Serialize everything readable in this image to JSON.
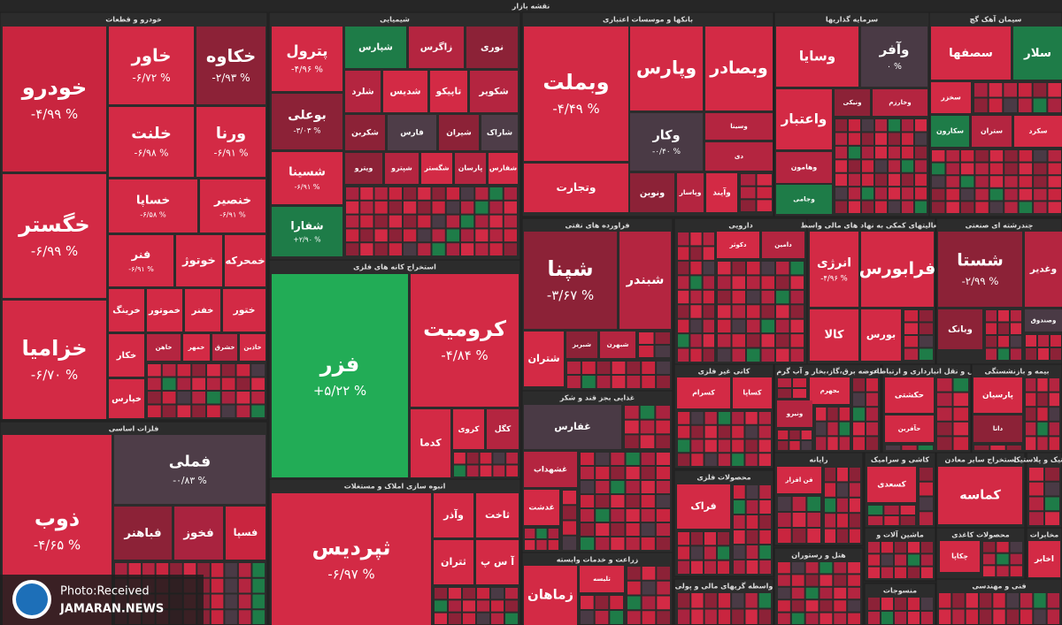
{
  "header": {
    "title": "نقشه بازار"
  },
  "sectors": [
    {
      "title": "خودرو و قطعات",
      "tiles": [
        {
          "label": "خودرو",
          "change": "-۴/۹۹ %",
          "color": "#c9253f"
        },
        {
          "label": "خگستر",
          "change": "-۶/۹۹ %",
          "color": "#d32a45"
        },
        {
          "label": "خزامیا",
          "change": "-۶/۷۰ %",
          "color": "#d32a45"
        },
        {
          "label": "خاور",
          "change": "-۶/۷۲ %",
          "color": "#d32a45"
        },
        {
          "label": "خکاوه",
          "change": "-۲/۹۳ %",
          "color": "#8c2237"
        },
        {
          "label": "خلنت",
          "change": "-۶/۹۸ %",
          "color": "#d32a45"
        },
        {
          "label": "ورنا",
          "change": "-۶/۹۱ %",
          "color": "#d32a45"
        },
        {
          "label": "خساپا",
          "change": "-۶/۵۸ %",
          "color": "#d32a45"
        },
        {
          "label": "خنصیر",
          "change": "-۶/۹۱ %",
          "color": "#d32a45"
        },
        {
          "label": "فنر",
          "change": "-۶/۹۱ %",
          "color": "#d32a45"
        },
        {
          "label": "خوتوژ",
          "color": "#d32a45"
        },
        {
          "label": "خمحرکه",
          "color": "#d32a45"
        },
        {
          "label": "خرینگ",
          "color": "#d32a45"
        },
        {
          "label": "خموتور",
          "color": "#d32a45"
        },
        {
          "label": "خفنر",
          "color": "#d32a45"
        },
        {
          "label": "ختور",
          "color": "#d32a45"
        },
        {
          "label": "خکار",
          "color": "#d32a45"
        },
        {
          "label": "خاهن",
          "color": "#b42540"
        },
        {
          "label": "خمهر",
          "color": "#d32a45"
        },
        {
          "label": "خشرق",
          "color": "#b42540"
        },
        {
          "label": "خاذین",
          "color": "#d32a45"
        },
        {
          "label": "خپارس",
          "color": "#d32a45"
        }
      ]
    },
    {
      "title": "فلزات اساسی",
      "tiles": [
        {
          "label": "ذوب",
          "change": "-۴/۶۵ %",
          "color": "#d32a45"
        },
        {
          "label": "فملی",
          "change": "-۰/۸۳ %",
          "color": "#4e3d48"
        },
        {
          "label": "فباهنر",
          "color": "#8c2237"
        },
        {
          "label": "فخوز",
          "color": "#a9233f"
        },
        {
          "label": "فسپا",
          "color": "#c9253f"
        }
      ]
    },
    {
      "title": "شیمیایی",
      "tiles": [
        {
          "label": "پترول",
          "change": "-۴/۹۶ %",
          "color": "#d32a45"
        },
        {
          "label": "بوعلی",
          "change": "-۳/۰۳ %",
          "color": "#8c2237"
        },
        {
          "label": "شسینا",
          "change": "-۶/۹۱ %",
          "color": "#d32a45"
        },
        {
          "label": "شفارا",
          "change": "+۲/۹۰ %",
          "color": "#1e7c48"
        },
        {
          "label": "شپارس",
          "color": "#1e7c48"
        },
        {
          "label": "زاگرس",
          "color": "#b42540"
        },
        {
          "label": "نوری",
          "color": "#8c2237"
        },
        {
          "label": "شلرد",
          "color": "#b42540"
        },
        {
          "label": "شدیس",
          "color": "#d32a45"
        },
        {
          "label": "تاپیکو",
          "color": "#d32a45"
        },
        {
          "label": "شکویر",
          "color": "#b42540"
        },
        {
          "label": "شکربن",
          "color": "#8c2237"
        },
        {
          "label": "فارس",
          "color": "#4e3d48"
        },
        {
          "label": "شیران",
          "color": "#8c2237"
        },
        {
          "label": "شاراک",
          "color": "#4e3d48"
        },
        {
          "label": "ویترو",
          "color": "#8c2237"
        },
        {
          "label": "شپترو",
          "color": "#b42540"
        },
        {
          "label": "شگستر",
          "color": "#d32a45"
        },
        {
          "label": "پارسان",
          "color": "#b42540"
        },
        {
          "label": "شفارس",
          "color": "#d32a45"
        }
      ]
    },
    {
      "title": "استخراج کانه های فلزی",
      "tiles": [
        {
          "label": "فزر",
          "change": "+۵/۲۲ %",
          "color": "#22ac56"
        },
        {
          "label": "کرومیت",
          "change": "-۴/۸۴ %",
          "color": "#d32a45"
        },
        {
          "label": "کدما",
          "color": "#d32a45"
        },
        {
          "label": "کروی",
          "color": "#d32a45"
        },
        {
          "label": "کگل",
          "color": "#b42540"
        }
      ]
    },
    {
      "title": "انبوه سازی املاک و مستغلات",
      "tiles": [
        {
          "label": "ثپردیس",
          "change": "-۶/۹۷ %",
          "color": "#d32a45"
        },
        {
          "label": "وآذر",
          "color": "#d32a45"
        },
        {
          "label": "ثاخت",
          "color": "#d32a45"
        },
        {
          "label": "ثتران",
          "color": "#d32a45"
        },
        {
          "label": "آ س پ",
          "color": "#d32a45"
        }
      ]
    },
    {
      "title": "بانکها و موسسات اعتباری",
      "tiles": [
        {
          "label": "وبملت",
          "change": "-۴/۴۹ %",
          "color": "#d32a45"
        },
        {
          "label": "وپارس",
          "color": "#d32a45"
        },
        {
          "label": "وبصادر",
          "color": "#d32a45"
        },
        {
          "label": "وکار",
          "change": "-۰/۴۰ %",
          "color": "#4a3a45"
        },
        {
          "label": "وسینا",
          "color": "#b42540"
        },
        {
          "label": "دی",
          "color": "#b42540"
        },
        {
          "label": "وتجارت",
          "color": "#d32a45"
        },
        {
          "label": "ونوین",
          "color": "#8c2237"
        },
        {
          "label": "وپاسار",
          "color": "#b42540"
        },
        {
          "label": "وآیند",
          "color": "#d32a45"
        }
      ]
    },
    {
      "title": "سرمایه گذاریها",
      "tiles": [
        {
          "label": "وسایا",
          "color": "#d32a45"
        },
        {
          "label": "وآفر",
          "change": "۰ %",
          "color": "#4a3a45"
        },
        {
          "label": "واعتبار",
          "color": "#d32a45"
        },
        {
          "label": "ونیکی",
          "color": "#8c2237"
        },
        {
          "label": "وخارزم",
          "color": "#b42540"
        },
        {
          "label": "وهامون",
          "color": "#b42540"
        },
        {
          "label": "وجامی",
          "color": "#1e7c48"
        }
      ]
    },
    {
      "title": "سیمان آهک گچ",
      "tiles": [
        {
          "label": "سصفها",
          "color": "#d32a45"
        },
        {
          "label": "سلار",
          "color": "#1e7c48"
        },
        {
          "label": "سخزر",
          "color": "#d32a45"
        },
        {
          "label": "سکارون",
          "color": "#1e7c48"
        },
        {
          "label": "ستران",
          "color": "#b42540"
        },
        {
          "label": "سکرد",
          "color": "#d32a45"
        }
      ]
    },
    {
      "title": "فراورده های نفتی",
      "tiles": [
        {
          "label": "شپنا",
          "change": "-۳/۶۷ %",
          "color": "#8c2237"
        },
        {
          "label": "شبندر",
          "color": "#b42540"
        },
        {
          "label": "شتران",
          "color": "#d32a45"
        },
        {
          "label": "شبریز",
          "color": "#8c2237"
        },
        {
          "label": "شبهرن",
          "color": "#b42540"
        }
      ]
    },
    {
      "title": "غذایی بجز قند و شکر",
      "tiles": [
        {
          "label": "غفارس",
          "color": "#4a3a45"
        },
        {
          "label": "غشهداب",
          "color": "#b42540"
        },
        {
          "label": "غدشت",
          "color": "#d32a45"
        }
      ]
    },
    {
      "title": "زراعت و خدمات وابسته",
      "tiles": [
        {
          "label": "زماهان",
          "color": "#d32a45"
        },
        {
          "label": "تلیسه",
          "color": "#d32a45"
        }
      ]
    },
    {
      "title": "دارویی",
      "tiles": [
        {
          "label": "دکوثر",
          "color": "#d32a45"
        },
        {
          "label": "دامین",
          "color": "#b42540"
        }
      ]
    },
    {
      "title": "فعالیتهای کمکی به نهاد های مالی واسط",
      "tiles": [
        {
          "label": "انرژی",
          "change": "-۴/۹۶ %",
          "color": "#d32a45"
        },
        {
          "label": "فرابورس",
          "color": "#d32a45"
        },
        {
          "label": "کالا",
          "color": "#d32a45"
        },
        {
          "label": "بورس",
          "color": "#d32a45"
        }
      ]
    },
    {
      "title": "چندرشته ای صنعتی",
      "tiles": [
        {
          "label": "شستا",
          "change": "-۲/۹۹ %",
          "color": "#8c2237"
        },
        {
          "label": "وغدیر",
          "color": "#b42540"
        },
        {
          "label": "وبانک",
          "color": "#8c2237"
        },
        {
          "label": "وصندوق",
          "color": "#4a3a45"
        }
      ]
    },
    {
      "title": "کانی غیر فلزی",
      "tiles": [
        {
          "label": "کسرام",
          "color": "#d32a45"
        },
        {
          "label": "کساپا",
          "color": "#d32a45"
        }
      ]
    },
    {
      "title": "عرضه برق،گاز،بخار و آب گرم",
      "tiles": [
        {
          "label": "بجهرم",
          "color": "#d32a45"
        },
        {
          "label": "ونیرو",
          "color": "#b42540"
        }
      ]
    },
    {
      "title": "حمل و نقل انبارداری و ارتباطات",
      "tiles": [
        {
          "label": "حکشتی",
          "color": "#d32a45"
        },
        {
          "label": "حآفرین",
          "color": "#d32a45"
        }
      ]
    },
    {
      "title": "بیمه و بازنشستگی",
      "tiles": [
        {
          "label": "پارسیان",
          "color": "#d32a45"
        },
        {
          "label": "دانا",
          "color": "#8c2237"
        }
      ]
    },
    {
      "title": "محصولات فلزی",
      "tiles": [
        {
          "label": "فراک",
          "color": "#d32a45"
        }
      ]
    },
    {
      "title": "رایانه",
      "tiles": [
        {
          "label": "فن افزار",
          "color": "#d32a45"
        }
      ]
    },
    {
      "title": "کاشی و سرامیک",
      "tiles": [
        {
          "label": "کسعدی",
          "color": "#d32a45"
        }
      ]
    },
    {
      "title": "استخراج سایر معادن",
      "tiles": [
        {
          "label": "کماسه",
          "color": "#d32a45"
        }
      ]
    },
    {
      "title": "لاستیک و پلاستیک",
      "tiles": []
    },
    {
      "title": "ماشین آلات و",
      "tiles": []
    },
    {
      "title": "محصولات کاغذی",
      "tiles": [
        {
          "label": "چکاپا",
          "color": "#d32a45"
        }
      ]
    },
    {
      "title": "مخابرات",
      "tiles": [
        {
          "label": "اخابر",
          "color": "#d32a45"
        }
      ]
    },
    {
      "title": "واسطه گریهای مالی و پولی",
      "tiles": []
    },
    {
      "title": "هتل و رستوران",
      "tiles": []
    },
    {
      "title": "منسوجات",
      "tiles": []
    },
    {
      "title": "فنی و مهندسی",
      "tiles": []
    }
  ],
  "watermark": {
    "credit": "Photo:Received",
    "site": "JAMARAN.NEWS"
  }
}
